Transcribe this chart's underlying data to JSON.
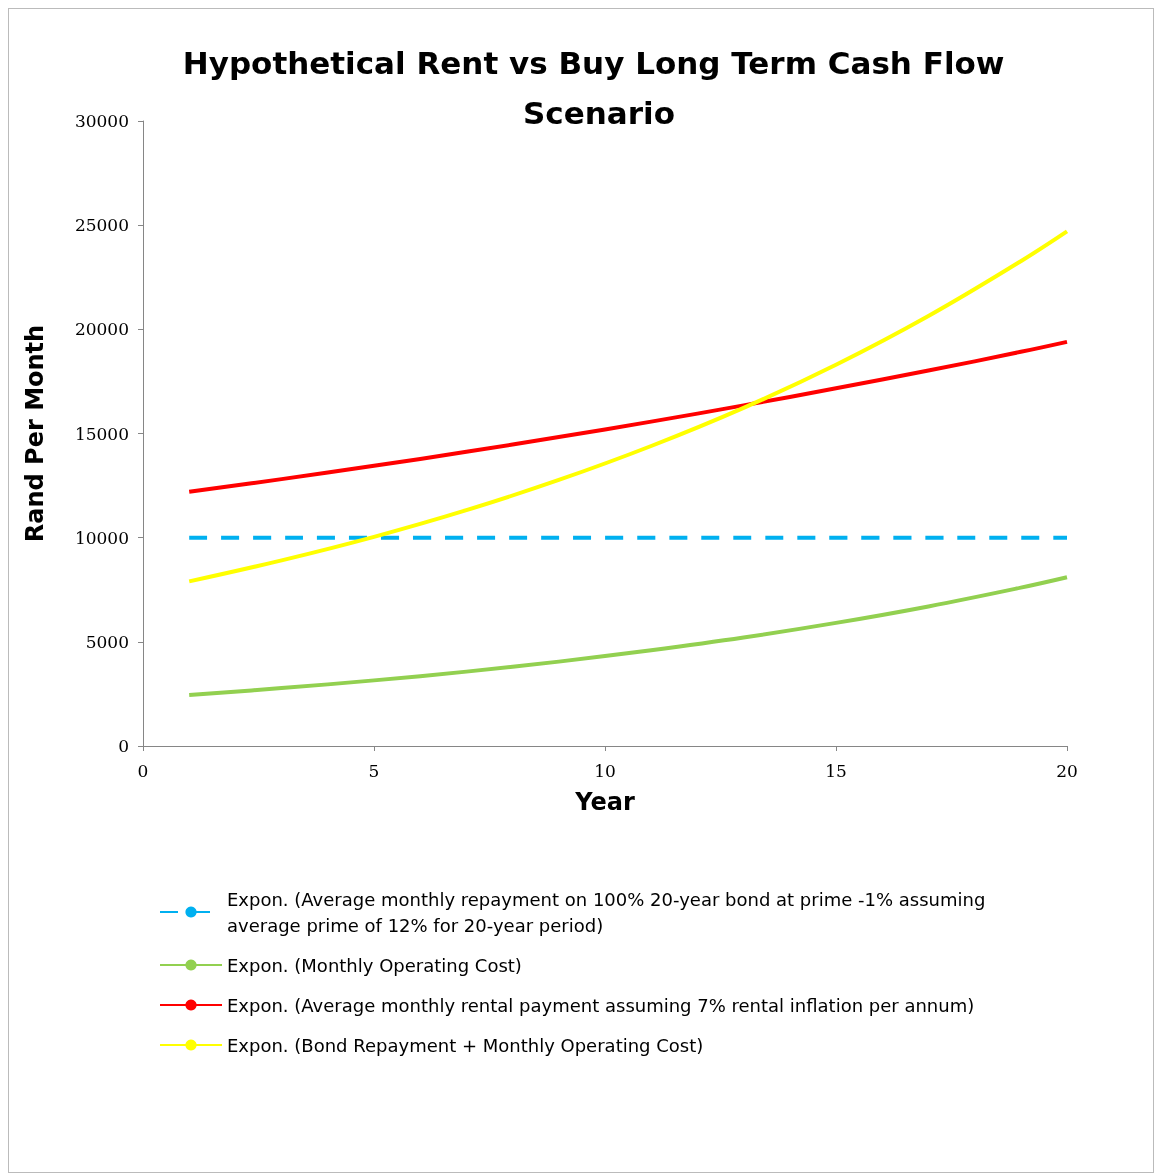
{
  "chart_data": {
    "type": "line",
    "title": "Hypothetical Rent vs Buy Long Term Cash Flow Scenario",
    "xlabel": "Year",
    "ylabel": "Rand Per Month",
    "xlim": [
      0,
      20
    ],
    "xticks": [
      0,
      5,
      10,
      15,
      20
    ],
    "ylim": [
      0,
      30000
    ],
    "yticks": [
      0,
      5000,
      10000,
      15000,
      20000,
      25000,
      30000
    ],
    "grid": false,
    "legend": "bottom",
    "marker": "none",
    "series": [
      {
        "name": "Expon. (Average monthly repayment on 100% 20-year bond at prime -1% assuming average prime of 12% for 20-year period)",
        "color": "#00b0f0",
        "line_style": "dashed",
        "x": [
          1,
          20
        ],
        "values": [
          10000,
          10000
        ]
      },
      {
        "name": "Expon. (Monthly Operating Cost)",
        "color": "#92d050",
        "x": [
          1,
          3,
          5,
          7,
          9,
          11,
          13,
          15,
          17,
          19,
          20
        ],
        "values": [
          2450,
          2780,
          3150,
          3570,
          4050,
          4600,
          5210,
          5910,
          6700,
          7600,
          8100
        ]
      },
      {
        "name": "Expon. (Average monthly rental payment assuming 7% rental inflation per annum)",
        "color": "#ff0000",
        "x": [
          1,
          3,
          5,
          7,
          9,
          11,
          13,
          15,
          17,
          19,
          20
        ],
        "values": [
          12200,
          12810,
          13450,
          14120,
          14830,
          15570,
          16350,
          17170,
          18020,
          18920,
          19400
        ]
      },
      {
        "name": "Expon. (Bond Repayment + Monthly Operating Cost)",
        "color": "#ffff00",
        "x": [
          1,
          3,
          5,
          7,
          9,
          11,
          13,
          15,
          17,
          19,
          20
        ],
        "values": [
          7900,
          8910,
          10040,
          11320,
          12770,
          14400,
          16230,
          18300,
          20640,
          23270,
          24700
        ]
      }
    ]
  }
}
